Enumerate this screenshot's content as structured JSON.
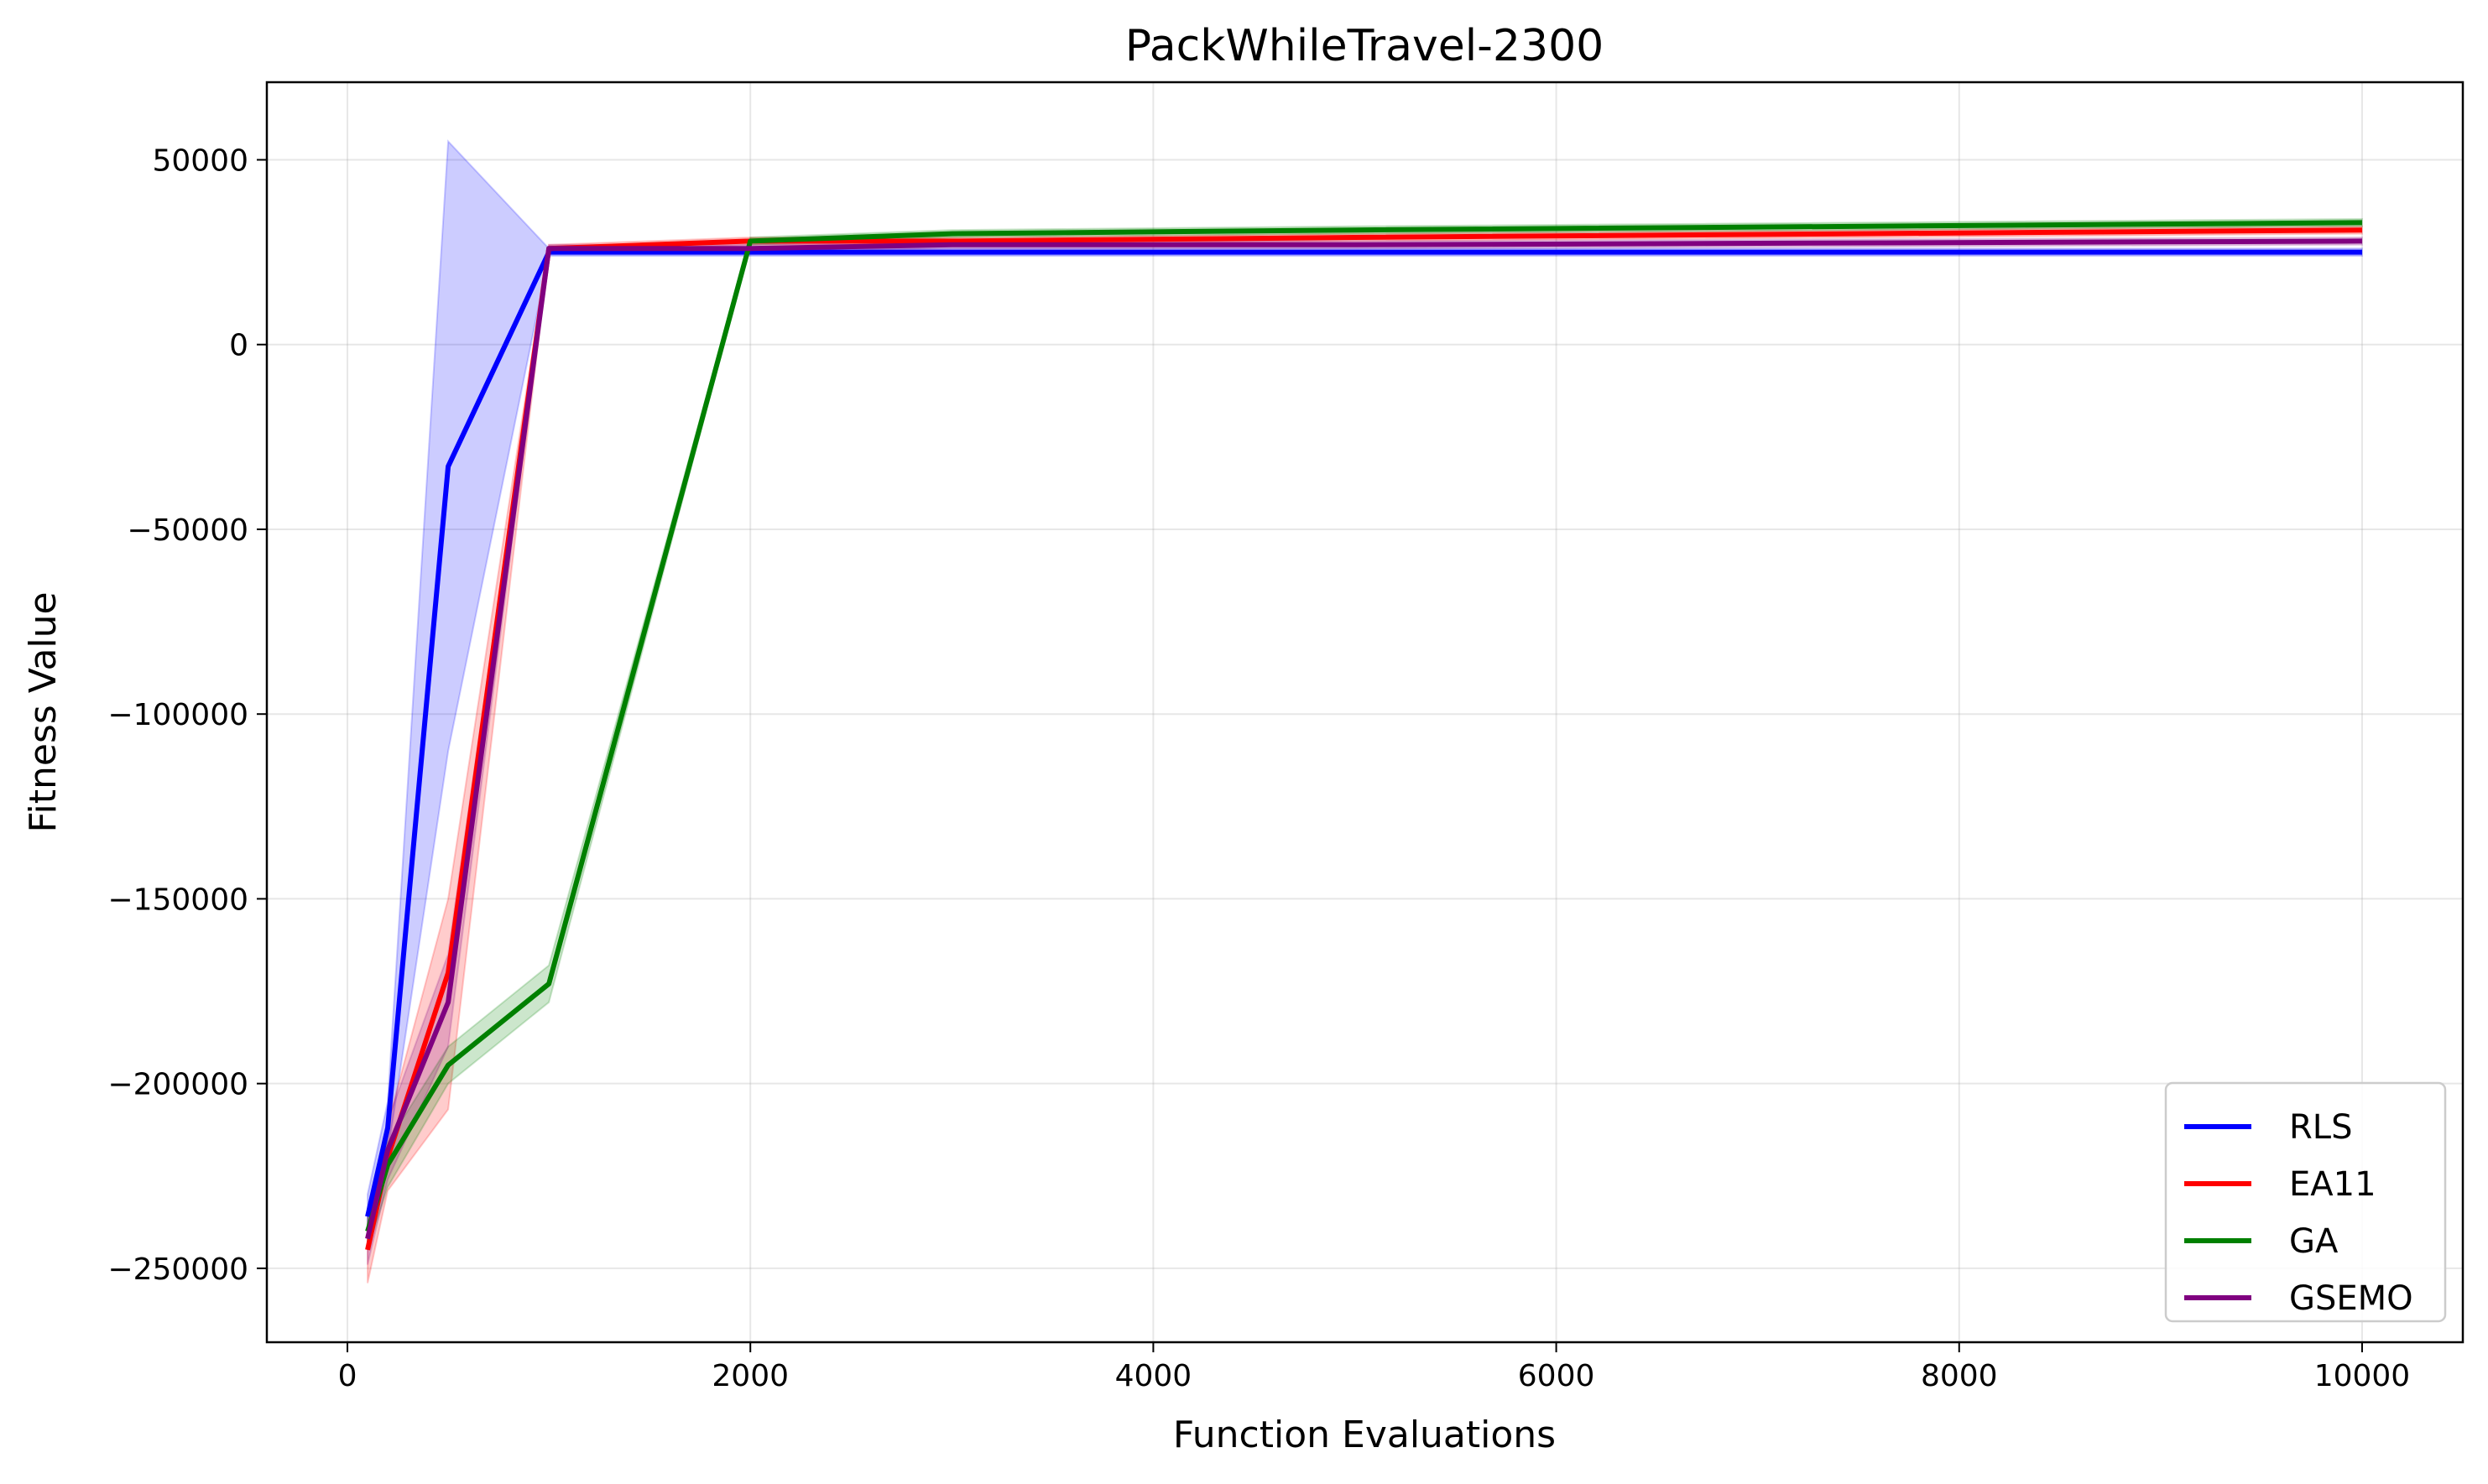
{
  "chart_data": {
    "type": "line",
    "title": "PackWhileTravel-2300",
    "xlabel": "Function Evaluations",
    "ylabel": "Fitness Value",
    "xlim": [
      -400,
      10500
    ],
    "ylim": [
      -270000,
      71000
    ],
    "xticks": [
      0,
      2000,
      4000,
      6000,
      8000,
      10000
    ],
    "yticks": [
      -250000,
      -200000,
      -150000,
      -100000,
      -50000,
      0,
      50000
    ],
    "xtick_labels": [
      "0",
      "2000",
      "4000",
      "6000",
      "8000",
      "10000"
    ],
    "ytick_labels": [
      "−250000",
      "−200000",
      "−150000",
      "−100000",
      "−50000",
      "0",
      "50000"
    ],
    "grid": true,
    "legend_position": "lower-right",
    "x": [
      100,
      200,
      500,
      1000,
      2000,
      3000,
      5000,
      10000
    ],
    "series": [
      {
        "name": "RLS",
        "color": "#0000ff",
        "values": [
          -236000,
          -212000,
          -33000,
          25000,
          25000,
          25000,
          25000,
          25000
        ],
        "band_lower": [
          -242000,
          -219000,
          -110000,
          24000,
          24000,
          24000,
          24000,
          24000
        ],
        "band_upper": [
          -230000,
          -205000,
          55000,
          26000,
          26000,
          26000,
          26000,
          26000
        ]
      },
      {
        "name": "EA11",
        "color": "#ff0000",
        "values": [
          -245000,
          -220000,
          -170000,
          26000,
          28000,
          28000,
          29000,
          31000
        ],
        "band_lower": [
          -254000,
          -229000,
          -207000,
          25000,
          27000,
          27000,
          28000,
          30000
        ],
        "band_upper": [
          -238000,
          -211000,
          -150000,
          27000,
          29000,
          29000,
          30000,
          32000
        ]
      },
      {
        "name": "GA",
        "color": "#008000",
        "values": [
          -240000,
          -222000,
          -195000,
          -173000,
          28000,
          30000,
          31000,
          33000
        ],
        "band_lower": [
          -245000,
          -228000,
          -200000,
          -178000,
          27000,
          29000,
          30000,
          32000
        ],
        "band_upper": [
          -235000,
          -216000,
          -190000,
          -168000,
          29000,
          31000,
          32000,
          34000
        ]
      },
      {
        "name": "GSEMO",
        "color": "#800080",
        "values": [
          -242000,
          -218000,
          -178000,
          26000,
          26000,
          27000,
          27000,
          28000
        ],
        "band_lower": [
          -249000,
          -226000,
          -190000,
          25000,
          25000,
          26000,
          26000,
          27000
        ],
        "band_upper": [
          -235000,
          -210000,
          -165000,
          27000,
          27000,
          28000,
          28000,
          29000
        ]
      }
    ]
  }
}
